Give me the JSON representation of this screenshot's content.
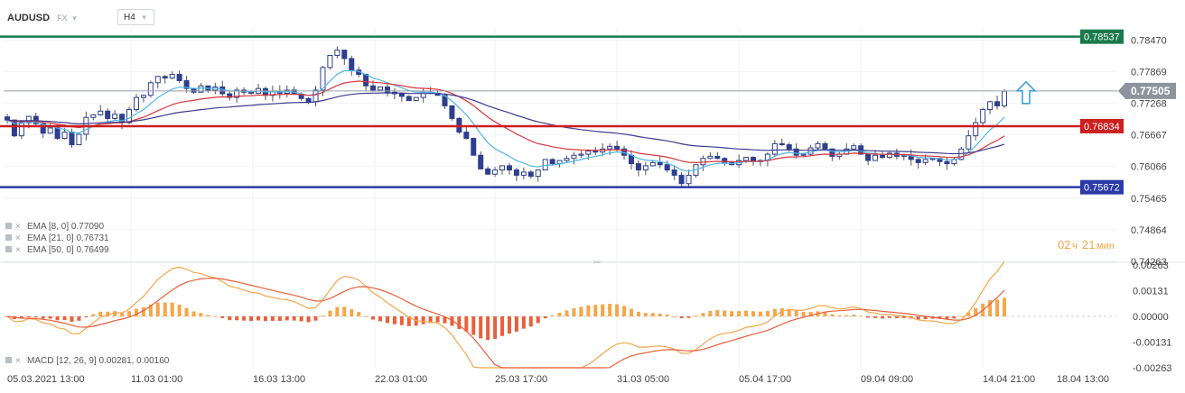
{
  "header": {
    "symbol": "AUDUSD",
    "market": "FX",
    "timeframe": "H4"
  },
  "countdown": {
    "hours": "02",
    "hours_unit": "ч",
    "minutes": "21",
    "minutes_unit": "мин"
  },
  "indicators": [
    {
      "label": "EMA [8, 0]",
      "value": "0.77090",
      "color": "#4db8e8"
    },
    {
      "label": "EMA [21, 0]",
      "value": "0.76731",
      "color": "#d9363e"
    },
    {
      "label": "EMA [50, 0]",
      "value": "0.76499",
      "color": "#3b3b8f"
    }
  ],
  "macd_legend": {
    "label": "MACD [12, 26, 9]",
    "value1": "0.00281",
    "value2": "0.00160"
  },
  "colors": {
    "bull": "#2e3f8f",
    "bear": "#2e3f8f",
    "green_line": "#1a7a4c",
    "red_line": "#cc1f1f",
    "blue_line": "#2b3aa8",
    "hist_pos": "#f5a64a",
    "hist_neg": "#e8603c",
    "macd_line": "#f5a64a",
    "signal_line": "#e8603c",
    "arrow": "#3aa0e0",
    "countdown": "#f5a64a"
  },
  "chart_data": [
    {
      "type": "candlestick",
      "title": "AUDUSD H4",
      "ylim": [
        0.7426,
        0.7872
      ],
      "y_ticks": [
        "0.78470",
        "0.77869",
        "0.77268",
        "0.76667",
        "0.76066",
        "0.75465",
        "0.74864",
        "0.74263"
      ],
      "x_ticks": [
        "05.03.2021 13:00",
        "11.03 01:00",
        "16.03 13:00",
        "22.03 01:00",
        "25.03 17:00",
        "31.03 05:00",
        "05.04 17:00",
        "09.04 09:00",
        "14.04 21:00",
        "18.04 13:00"
      ],
      "current_price": "0.77505",
      "horizontal_levels": [
        {
          "label": "0.78537",
          "value": 0.78537,
          "color": "#1a7a4c"
        },
        {
          "label": "0.76834",
          "value": 0.76834,
          "color": "#cc1f1f"
        },
        {
          "label": "0.75672",
          "value": 0.75672,
          "color": "#2b3aa8"
        }
      ],
      "close_series": [
        0.7695,
        0.7665,
        0.769,
        0.7702,
        0.7688,
        0.767,
        0.768,
        0.766,
        0.7672,
        0.7648,
        0.7668,
        0.77,
        0.7705,
        0.7712,
        0.7698,
        0.7706,
        0.769,
        0.7715,
        0.7738,
        0.7742,
        0.7766,
        0.7778,
        0.7775,
        0.7782,
        0.777,
        0.7755,
        0.7748,
        0.776,
        0.7752,
        0.7758,
        0.7745,
        0.7738,
        0.7752,
        0.7748,
        0.7746,
        0.7755,
        0.7742,
        0.775,
        0.7746,
        0.7752,
        0.7744,
        0.7736,
        0.773,
        0.7752,
        0.7795,
        0.7818,
        0.7828,
        0.7812,
        0.779,
        0.7782,
        0.776,
        0.7752,
        0.7758,
        0.7748,
        0.7745,
        0.774,
        0.7732,
        0.7738,
        0.7748,
        0.7746,
        0.7742,
        0.7722,
        0.7698,
        0.7672,
        0.766,
        0.7628,
        0.7602,
        0.7592,
        0.76,
        0.7608,
        0.76,
        0.759,
        0.7596,
        0.7588,
        0.76,
        0.762,
        0.7612,
        0.7618,
        0.7622,
        0.7628,
        0.763,
        0.7636,
        0.7634,
        0.764,
        0.7645,
        0.764,
        0.7628,
        0.7612,
        0.76,
        0.7608,
        0.7614,
        0.761,
        0.76,
        0.759,
        0.7574,
        0.759,
        0.761,
        0.7622,
        0.7626,
        0.7622,
        0.7614,
        0.761,
        0.7618,
        0.7624,
        0.7616,
        0.7618,
        0.763,
        0.765,
        0.7648,
        0.764,
        0.7628,
        0.763,
        0.7642,
        0.765,
        0.764,
        0.7626,
        0.763,
        0.764,
        0.7646,
        0.763,
        0.7618,
        0.7628,
        0.7624,
        0.7632,
        0.7626,
        0.7628,
        0.762,
        0.7614,
        0.762,
        0.7622,
        0.7616,
        0.7612,
        0.762,
        0.764,
        0.7665,
        0.769,
        0.7715,
        0.773,
        0.7722,
        0.775
      ],
      "ema_series": [
        {
          "name": "EMA [8, 0]",
          "last": 0.7709
        },
        {
          "name": "EMA [21, 0]",
          "last": 0.76731
        },
        {
          "name": "EMA [50, 0]",
          "last": 0.76499
        }
      ]
    },
    {
      "type": "bar",
      "title": "MACD [12, 26, 9]",
      "ylim": [
        -0.00263,
        0.00263
      ],
      "y_ticks": [
        "0.00263",
        "0.00131",
        "0.00000",
        "-0.00131",
        "-0.00263"
      ],
      "macd": 0.00281,
      "signal": 0.0016
    }
  ]
}
